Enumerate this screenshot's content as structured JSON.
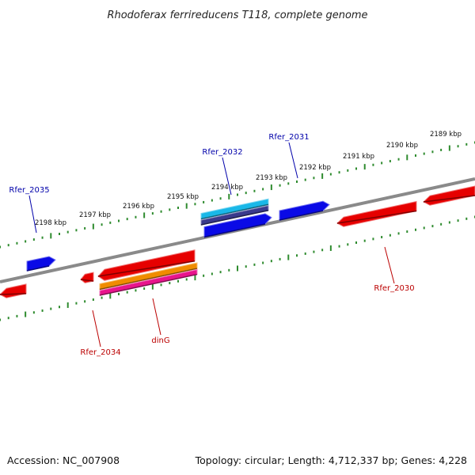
{
  "title": "Rhodoferax ferrireducens T118, complete genome",
  "footer": {
    "accession": "Accession: NC_007908",
    "topology": "Topology: circular; Length: 4,712,337 bp; Genes: 4,228"
  },
  "colors": {
    "background": "#ffffff",
    "backbone": "#8a8a8a",
    "ticks": "#2e8b2e",
    "forward_gene": "#0a0ae6",
    "reverse_gene": "#e60000",
    "forward_label": "#0000aa",
    "reverse_label": "#bb0000",
    "cyan_track": "#1ab8e8",
    "navy_track": "#3a3a8c",
    "orange_track": "#f08c00",
    "magenta_track": "#e8158c"
  },
  "ticks": [
    {
      "label": "2189 kbp"
    },
    {
      "label": "2190 kbp"
    },
    {
      "label": "2191 kbp"
    },
    {
      "label": "2192 kbp"
    },
    {
      "label": "2193 kbp"
    },
    {
      "label": "2194 kbp"
    },
    {
      "label": "2195 kbp"
    },
    {
      "label": "2196 kbp"
    },
    {
      "label": "2197 kbp"
    },
    {
      "label": "2198 kbp"
    }
  ],
  "gene_labels": [
    {
      "text": "Rfer_2031",
      "strand": "forward"
    },
    {
      "text": "Rfer_2032",
      "strand": "forward"
    },
    {
      "text": "Rfer_2035",
      "strand": "forward"
    },
    {
      "text": "Rfer_2030",
      "strand": "reverse"
    },
    {
      "text": "Rfer_2034",
      "strand": "reverse"
    },
    {
      "text": "dinG",
      "strand": "reverse"
    }
  ]
}
